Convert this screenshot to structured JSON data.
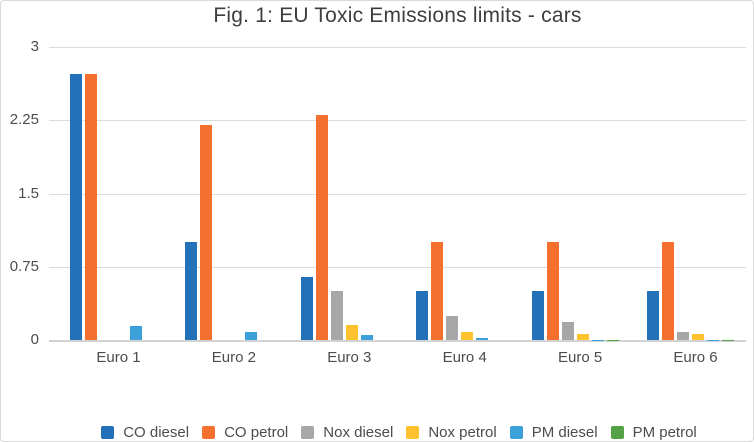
{
  "chart_data": {
    "type": "bar",
    "title": "Fig. 1: EU Toxic Emissions limits - cars",
    "categories": [
      "Euro 1",
      "Euro 2",
      "Euro 3",
      "Euro 4",
      "Euro 5",
      "Euro 6"
    ],
    "series": [
      {
        "name": "CO diesel",
        "color": "#2372b9",
        "values": [
          2.72,
          1.0,
          0.64,
          0.5,
          0.5,
          0.5
        ]
      },
      {
        "name": "CO petrol",
        "color": "#f5702e",
        "values": [
          2.72,
          2.2,
          2.3,
          1.0,
          1.0,
          1.0
        ]
      },
      {
        "name": "Nox diesel",
        "color": "#a7a7a7",
        "values": [
          null,
          null,
          0.5,
          0.25,
          0.18,
          0.08
        ]
      },
      {
        "name": "Nox petrol",
        "color": "#ffc22f",
        "values": [
          null,
          null,
          0.15,
          0.08,
          0.06,
          0.06
        ]
      },
      {
        "name": "PM diesel",
        "color": "#3ca0db",
        "values": [
          0.14,
          0.08,
          0.05,
          0.025,
          0.005,
          0.005
        ]
      },
      {
        "name": "PM petrol",
        "color": "#55a146",
        "values": [
          null,
          null,
          null,
          null,
          0.005,
          0.005
        ]
      }
    ],
    "ylim": [
      0,
      3
    ],
    "yticks": [
      0,
      0.75,
      1.5,
      2.25,
      3
    ],
    "ytick_labels": [
      "0",
      "0.75",
      "1.5",
      "2.25",
      "3"
    ],
    "xlabel": "",
    "ylabel": "",
    "grid": "horizontal",
    "legend_position": "bottom"
  }
}
